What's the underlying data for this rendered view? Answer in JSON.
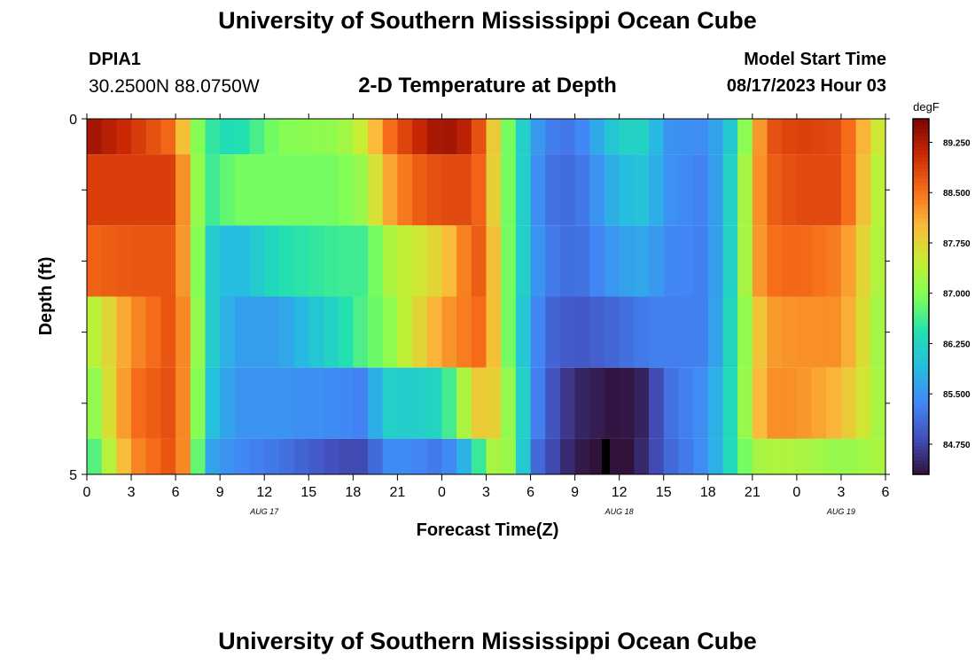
{
  "header": {
    "title": "University of Southern Mississippi Ocean Cube",
    "station_id": "DPIA1",
    "coordinates": "30.2500N  88.0750W",
    "plot_title": "2-D Temperature at Depth",
    "model_start_label": "Model Start Time",
    "model_start_value": "08/17/2023 Hour 03"
  },
  "footer": {
    "title": "University of Southern Mississippi Ocean Cube"
  },
  "chart_data": {
    "type": "heatmap",
    "title": "2-D Temperature at Depth",
    "xlabel": "Forecast Time(Z)",
    "ylabel": "Depth (ft)",
    "x_ticks": [
      "0",
      "3",
      "6",
      "9",
      "12",
      "15",
      "18",
      "21",
      "0",
      "3",
      "6",
      "9",
      "12",
      "15",
      "18",
      "21",
      "0",
      "3",
      "6"
    ],
    "x_range_hours": [
      0,
      54
    ],
    "date_labels": [
      {
        "label": "AUG 17",
        "hour": 12
      },
      {
        "label": "AUG 18",
        "hour": 36
      },
      {
        "label": "AUG 19",
        "hour": 51
      }
    ],
    "y_ticks": [
      "0",
      "5"
    ],
    "y_range": [
      0,
      5
    ],
    "colorbar": {
      "unit": "degF",
      "range": [
        84.3,
        89.6
      ],
      "ticks": [
        "89.250",
        "88.500",
        "87.750",
        "87.000",
        "86.250",
        "85.500",
        "84.750"
      ]
    },
    "depth_bands": [
      "0-0.5",
      "0.5-1.5",
      "1.5-2.5",
      "2.5-3.5",
      "3.5-4.5",
      "4.5-5"
    ],
    "time_keypoints": [
      0,
      3,
      6,
      7,
      8,
      10,
      13,
      17,
      19,
      20,
      22,
      24,
      26,
      27,
      28,
      29,
      30,
      31,
      33,
      36,
      38,
      39,
      42,
      44,
      45,
      46,
      48,
      51,
      54
    ],
    "temperature_degF": [
      [
        89.4,
        89.0,
        88.5,
        87.4,
        86.6,
        86.3,
        87.0,
        87.1,
        87.6,
        88.4,
        89.0,
        89.4,
        89.1,
        88.4,
        87.3,
        86.5,
        85.8,
        85.3,
        85.2,
        86.2,
        86.2,
        85.5,
        85.4,
        86.3,
        87.8,
        88.7,
        88.9,
        88.8,
        87.3
      ],
      [
        88.9,
        88.9,
        88.9,
        87.7,
        86.5,
        86.9,
        86.9,
        86.9,
        87.2,
        88.0,
        88.6,
        88.8,
        88.8,
        88.4,
        87.2,
        86.6,
        85.7,
        85.2,
        85.1,
        85.9,
        86.0,
        85.5,
        85.3,
        86.5,
        88.0,
        88.6,
        88.8,
        88.8,
        87.1
      ],
      [
        88.6,
        88.7,
        88.7,
        87.8,
        86.2,
        85.8,
        86.4,
        86.6,
        86.6,
        87.2,
        87.5,
        87.8,
        88.6,
        88.7,
        87.2,
        86.6,
        85.7,
        85.3,
        85.1,
        85.6,
        85.7,
        85.4,
        85.3,
        86.5,
        88.0,
        88.5,
        88.6,
        88.4,
        87.1
      ],
      [
        87.2,
        88.3,
        88.8,
        87.9,
        86.3,
        85.6,
        85.6,
        86.3,
        86.8,
        86.9,
        87.6,
        88.2,
        88.5,
        88.6,
        87.3,
        86.5,
        85.6,
        85.1,
        84.9,
        85.1,
        85.3,
        85.3,
        85.3,
        86.6,
        87.6,
        88.2,
        88.3,
        88.3,
        87.0
      ],
      [
        86.8,
        88.5,
        88.8,
        87.9,
        86.1,
        85.5,
        85.5,
        85.4,
        85.3,
        86.2,
        86.1,
        86.3,
        87.6,
        88.1,
        87.5,
        86.7,
        85.6,
        85.0,
        84.5,
        84.3,
        84.5,
        85.1,
        85.5,
        86.6,
        87.7,
        88.3,
        88.3,
        88.0,
        87.1
      ],
      [
        86.4,
        88.3,
        88.8,
        87.9,
        85.7,
        85.4,
        85.2,
        84.8,
        84.8,
        85.4,
        85.4,
        85.2,
        86.0,
        87.1,
        87.4,
        86.9,
        85.3,
        84.9,
        84.4,
        84.2,
        84.6,
        85.0,
        85.5,
        86.6,
        87.2,
        87.3,
        87.3,
        87.1,
        87.3
      ]
    ],
    "marker": {
      "hour": 35,
      "color": "#000000"
    }
  }
}
